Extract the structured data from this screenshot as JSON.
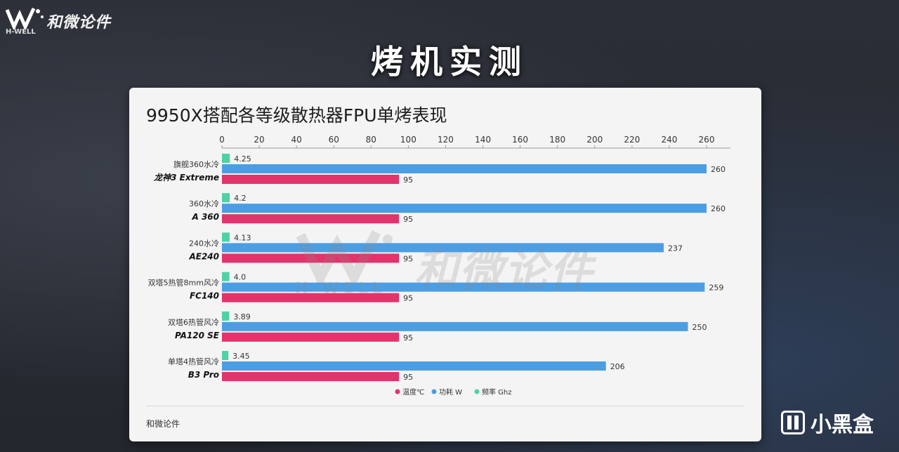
{
  "header": {
    "brand_cn": "和微论件",
    "brand_en": "H-WELL",
    "page_title": "烤机实测"
  },
  "card": {
    "footer": "和微论件"
  },
  "watermark": {
    "cn": "和微论件",
    "en": "H-WELL"
  },
  "badge": {
    "label": "小黑盒"
  },
  "chart_data": {
    "type": "bar",
    "orientation": "horizontal",
    "title": "9950X搭配各等级散热器FPU单烤表现",
    "xlim": [
      0,
      260
    ],
    "xticks": [
      0,
      20,
      40,
      60,
      80,
      100,
      120,
      140,
      160,
      180,
      200,
      220,
      240,
      260
    ],
    "axis_position": "top",
    "legend_position": "bottom",
    "categories": [
      {
        "line1": "旗舰360水冷",
        "line2": "龙神3 Extreme"
      },
      {
        "line1": "360水冷",
        "line2": "A 360"
      },
      {
        "line1": "240水冷",
        "line2": "AE240"
      },
      {
        "line1": "双塔5热管8mm风冷",
        "line2": "FC140"
      },
      {
        "line1": "双塔6热管风冷",
        "line2": "PA120 SE"
      },
      {
        "line1": "单塔4热管风冷",
        "line2": "B3 Pro"
      }
    ],
    "series": [
      {
        "name": "频率 Ghz",
        "color": "#4fd1a6",
        "values": [
          4.25,
          4.2,
          4.13,
          4.0,
          3.89,
          3.45
        ],
        "labels": [
          "4.25",
          "4.2",
          "4.13",
          "4.0",
          "3.89",
          "3.45"
        ]
      },
      {
        "name": "功耗 W",
        "color": "#4b9ee3",
        "values": [
          260,
          260,
          237,
          259,
          250,
          206
        ],
        "labels": [
          "260",
          "260",
          "237",
          "259",
          "250",
          "206"
        ]
      },
      {
        "name": "温度℃",
        "color": "#e2336b",
        "values": [
          95,
          95,
          95,
          95,
          95,
          95
        ],
        "labels": [
          "95",
          "95",
          "95",
          "95",
          "95",
          "95"
        ]
      }
    ],
    "legend_order": [
      "温度℃",
      "功耗 W",
      "频率 Ghz"
    ]
  }
}
